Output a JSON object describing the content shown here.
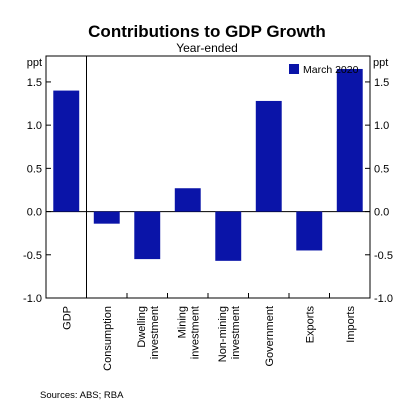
{
  "chart_data": {
    "type": "bar",
    "title": "Contributions to GDP Growth",
    "subtitle": "Year-ended",
    "source": "Sources: ABS; RBA",
    "ylabel_left": "ppt",
    "ylabel_right": "ppt",
    "ylim": [
      -1.0,
      1.8
    ],
    "yticks": [
      -1.0,
      -0.5,
      0.0,
      0.5,
      1.0,
      1.5
    ],
    "ytick_labels": [
      "-1.0",
      "-0.5",
      "0.0",
      "0.5",
      "1.0",
      "1.5"
    ],
    "grid": false,
    "legend_position": "top-right",
    "categories": [
      "GDP",
      "Consumption",
      "Dwelling investment",
      "Mining investment",
      "Non-mining investment",
      "Government",
      "Exports",
      "Imports"
    ],
    "category_label_lines": [
      [
        "GDP"
      ],
      [
        "Consumption"
      ],
      [
        "Dwelling",
        "investment"
      ],
      [
        "Mining",
        "investment"
      ],
      [
        "Non-mining",
        "investment"
      ],
      [
        "Government"
      ],
      [
        "Exports"
      ],
      [
        "Imports"
      ]
    ],
    "series": [
      {
        "name": "March 2020",
        "color": "#0a14a8",
        "values": [
          1.4,
          -0.14,
          -0.55,
          0.27,
          -0.57,
          1.28,
          -0.45,
          1.65
        ]
      }
    ]
  }
}
